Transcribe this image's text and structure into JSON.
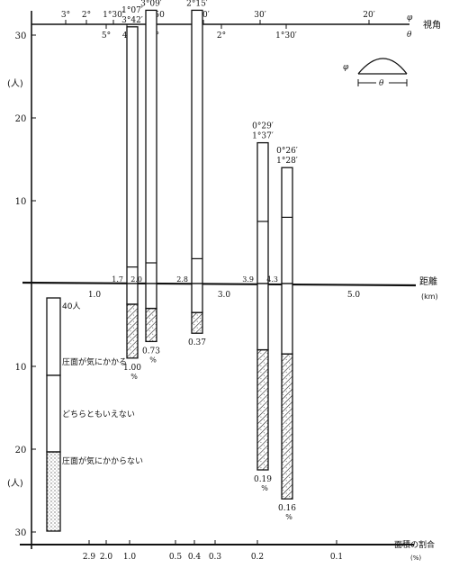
{
  "chart_data": {
    "type": "bar",
    "x_axis": {
      "label": "距離",
      "unit": "(km)",
      "ticks": [
        "1.0",
        "2.0",
        "3.0",
        "4.0",
        "5.0"
      ]
    },
    "y_axis": {
      "unit": "(人)",
      "upper_ticks": [
        "10",
        "20",
        "30"
      ],
      "lower_ticks": [
        "10",
        "20",
        "30"
      ]
    },
    "top_axis": {
      "label": "視角",
      "phi_symbol": "φ",
      "theta_symbol": "θ",
      "phi_ticks": [
        "3°",
        "2°",
        "1°30′",
        "1°50",
        "40′",
        "30′",
        "20′"
      ],
      "theta_ticks": [
        "5°",
        "4°",
        "3°",
        "2°",
        "1°30′"
      ]
    },
    "bottom_axis": {
      "label": "面積の割合",
      "unit": "(%)",
      "ticks": [
        "2.9",
        "2.0",
        "1.0",
        "0.5",
        "0.4",
        "0.3",
        "0.2",
        "0.1"
      ]
    },
    "inset": {
      "phi": "φ",
      "theta": "θ"
    },
    "legend_bar": {
      "total_label": "40人",
      "categories": [
        "圧面が気にかかる",
        "どちらともいえない",
        "圧面が気にかからない"
      ]
    },
    "bars": [
      {
        "distance_km": 1.7,
        "distance_label": "1.7",
        "phi": "1°07′",
        "theta": "3°42′",
        "upper": 31,
        "boundary": 2,
        "lower_middle": 2.5,
        "lower_bottom": 9,
        "area_label": "1.00",
        "pct_symbol": "%"
      },
      {
        "distance_km": 2.0,
        "distance_label": "2.0",
        "phi": "0°57′",
        "theta": "3°09′",
        "upper": 33,
        "boundary": 2.5,
        "lower_middle": 3,
        "lower_bottom": 7,
        "area_label": "0.73",
        "pct_symbol": "%"
      },
      {
        "distance_km": 2.8,
        "distance_label": "2.8",
        "phi": "0°41′",
        "theta": "2°15′",
        "upper": 33,
        "boundary": 3,
        "lower_middle": 3.5,
        "lower_bottom": 6,
        "area_label": "0.37",
        "pct_symbol": ""
      },
      {
        "distance_km": 3.9,
        "distance_label": "3.9",
        "phi": "0°29′",
        "theta": "1°37′",
        "upper": 17,
        "boundary": 7.5,
        "lower_middle": 8,
        "lower_bottom": 22.5,
        "area_label": "0.19",
        "pct_symbol": "%"
      },
      {
        "distance_km": 4.3,
        "distance_label": "4.3",
        "phi": "0°26′",
        "theta": "1°28′",
        "upper": 14,
        "boundary": 8,
        "lower_middle": 8.5,
        "lower_bottom": 26,
        "area_label": "0.16",
        "pct_symbol": "%"
      }
    ]
  }
}
